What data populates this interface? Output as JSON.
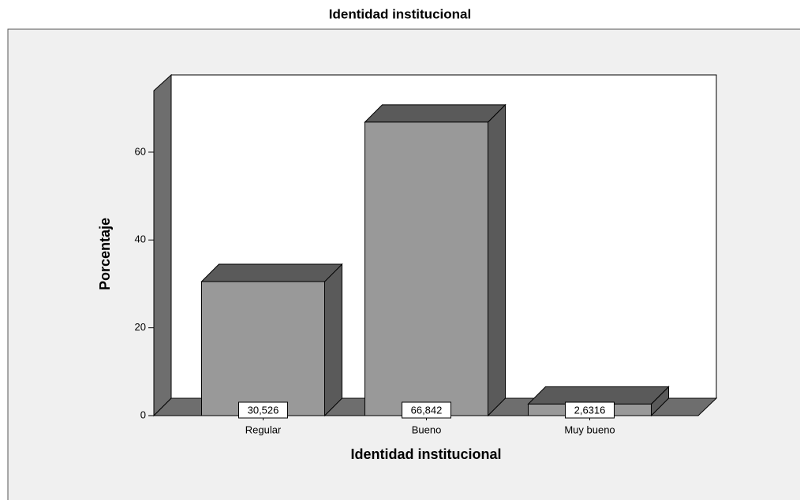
{
  "chart_data": {
    "type": "bar3d",
    "title": "Identidad institucional",
    "x_label": "Identidad institucional",
    "y_label": "Porcentaje",
    "categories": [
      "Regular",
      "Bueno",
      "Muy bueno"
    ],
    "values": [
      30.526,
      66.842,
      2.6316
    ],
    "value_labels": [
      "30,526",
      "66,842",
      "2,6316"
    ],
    "color": "#999999",
    "ylim": [
      0,
      74
    ],
    "yticks": [
      0,
      20,
      40,
      60
    ]
  }
}
